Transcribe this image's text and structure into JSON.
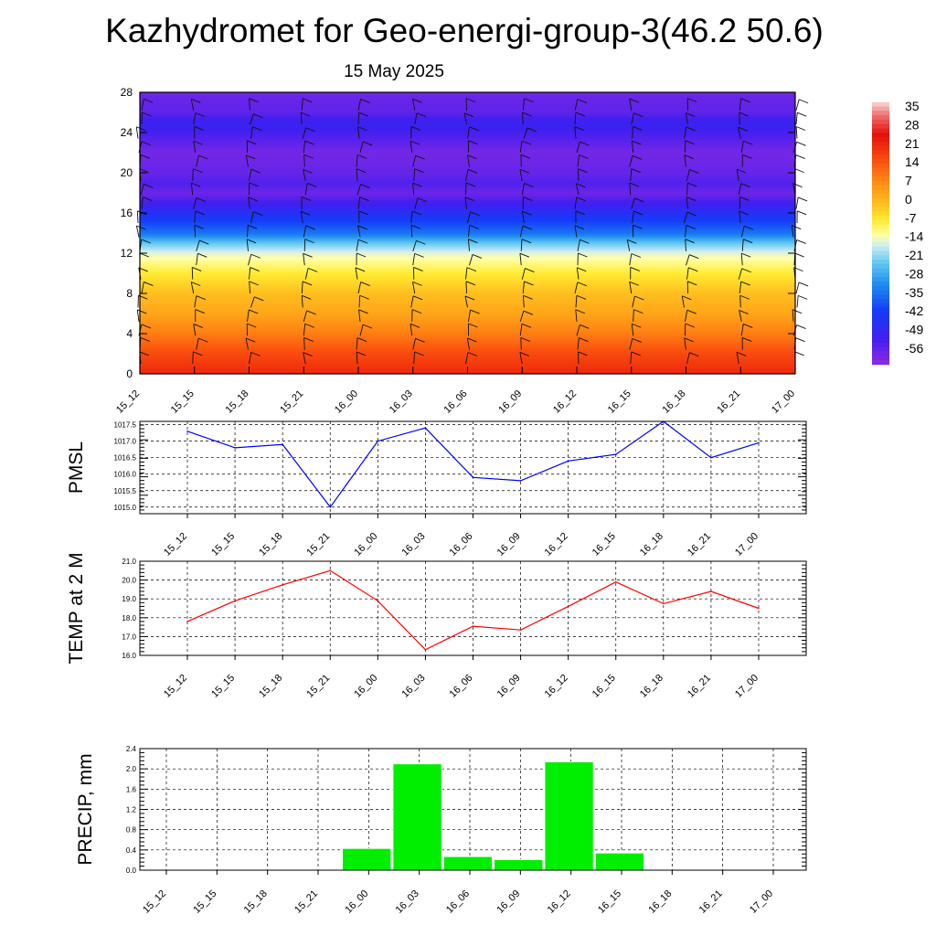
{
  "title": "Kazhydromet for Geo-energi-group-3(46.2 50.6)",
  "subtitle": "15 May 2025",
  "time_labels": [
    "15_12",
    "15_15",
    "15_18",
    "15_21",
    "16_00",
    "16_03",
    "16_06",
    "16_09",
    "16_12",
    "16_15",
    "16_18",
    "16_21",
    "17_00"
  ],
  "chart_data": [
    {
      "type": "heatmap",
      "name": "temperature-cross-section",
      "x": [
        "15_12",
        "15_15",
        "15_18",
        "15_21",
        "16_00",
        "16_03",
        "16_06",
        "16_09",
        "16_12",
        "16_15",
        "16_18",
        "16_21",
        "17_00"
      ],
      "y_ticks": [
        "0",
        "4",
        "8",
        "12",
        "16",
        "20",
        "24",
        "28"
      ],
      "ylim": [
        0,
        28
      ],
      "colorbar_labels": [
        "35",
        "28",
        "21",
        "14",
        "7",
        "0",
        "-7",
        "-14",
        "-21",
        "-28",
        "-35",
        "-42",
        "-49",
        "-56"
      ],
      "colorbar_range": [
        -60,
        38
      ],
      "overlay": "wind barbs",
      "profile_levels": [
        0,
        2,
        4,
        6,
        8,
        10,
        11,
        12,
        13,
        14,
        16,
        17,
        18,
        19,
        20,
        22,
        24,
        25,
        26,
        28
      ],
      "profile_values": [
        22,
        17,
        10,
        4,
        0,
        -6,
        -10,
        -14,
        -22,
        -33,
        -44,
        -50,
        -56,
        -52,
        -55,
        -57,
        -51,
        -48,
        -54,
        -56
      ],
      "colors": {
        "low": "#8b2be2",
        "high": "#e8130f"
      }
    },
    {
      "type": "line",
      "name": "pmsl",
      "ylabel": "PMSL",
      "x": [
        "15_12",
        "15_15",
        "15_18",
        "15_21",
        "16_00",
        "16_03",
        "16_06",
        "16_09",
        "16_12",
        "16_15",
        "16_18",
        "16_21",
        "17_00"
      ],
      "values": [
        1017.3,
        1016.8,
        1016.9,
        1015.0,
        1017.0,
        1017.4,
        1015.9,
        1015.8,
        1016.4,
        1016.6,
        1017.6,
        1016.5,
        1016.95
      ],
      "ylim": [
        1014.8,
        1017.6
      ],
      "y_ticks": [
        "1015.0",
        "1015.5",
        "1016.0",
        "1016.5",
        "1017.0",
        "1017.5"
      ],
      "grid": true,
      "color": "#0000ff"
    },
    {
      "type": "line",
      "name": "temp2m",
      "ylabel": "TEMP at 2 M",
      "x": [
        "15_12",
        "15_15",
        "15_18",
        "15_21",
        "16_00",
        "16_03",
        "16_06",
        "16_09",
        "16_12",
        "16_15",
        "16_18",
        "16_21",
        "17_00"
      ],
      "values": [
        17.8,
        18.9,
        19.75,
        20.5,
        18.9,
        16.3,
        17.55,
        17.35,
        18.6,
        19.9,
        18.75,
        19.4,
        18.5
      ],
      "ylim": [
        16.0,
        21.0
      ],
      "y_ticks": [
        "16.0",
        "17.0",
        "18.0",
        "19.0",
        "20.0",
        "21.0"
      ],
      "grid": true,
      "color": "#ff0000"
    },
    {
      "type": "bar",
      "name": "precip",
      "ylabel": "PRECIP, mm",
      "categories": [
        "15_12",
        "15_15",
        "15_18",
        "15_21",
        "16_00",
        "16_03",
        "16_06",
        "16_09",
        "16_12",
        "16_15",
        "16_18",
        "16_21",
        "17_00"
      ],
      "values": [
        0,
        0,
        0,
        0,
        0.43,
        2.1,
        0.27,
        0.21,
        2.14,
        0.34,
        0,
        0,
        0
      ],
      "ylim": [
        0,
        2.4
      ],
      "y_ticks": [
        "0.0",
        "0.4",
        "0.8",
        "1.2",
        "1.6",
        "2.0",
        "2.4"
      ],
      "grid": true,
      "color": "#00ee00"
    }
  ]
}
